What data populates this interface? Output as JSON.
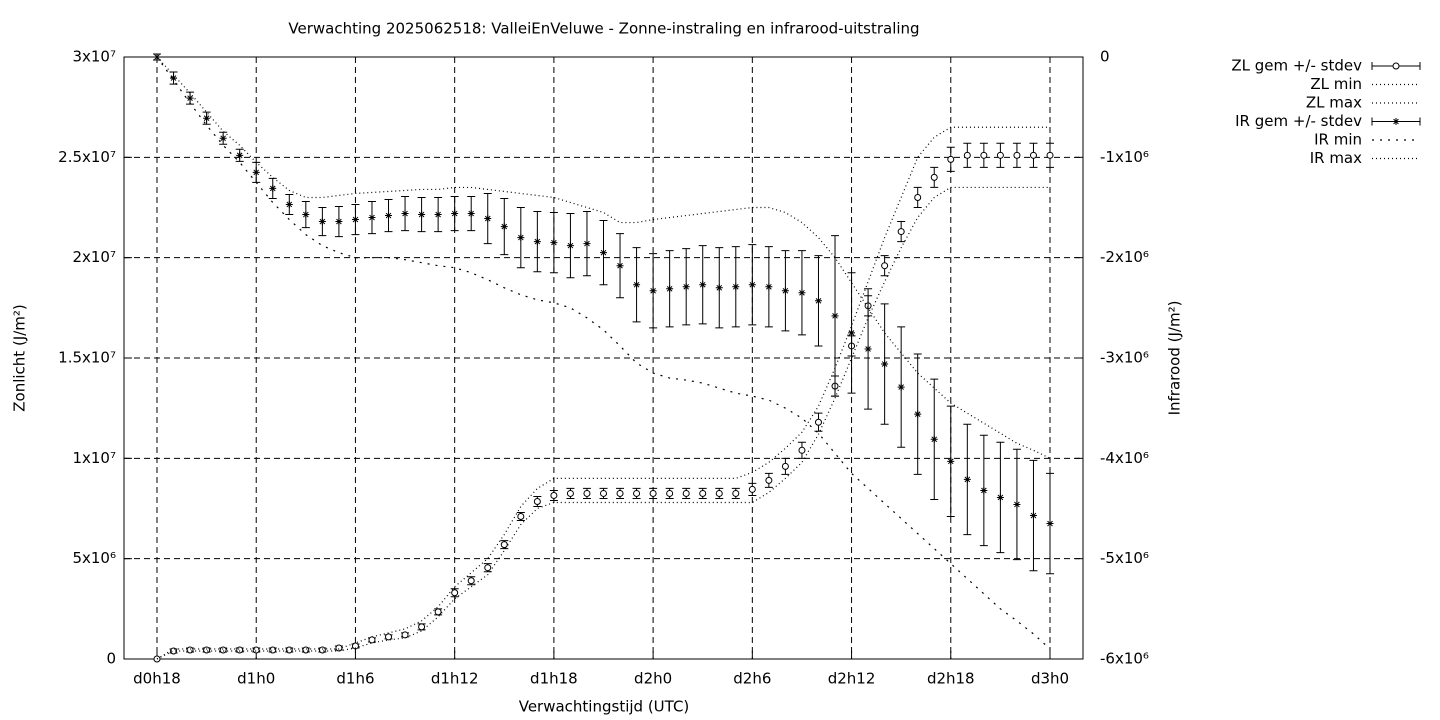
{
  "chart_data": {
    "type": "errorbar",
    "title": "Verwachting 2025062518: ValleiEnVeluwe - Zonne-instraling en infrarood-uitstraling",
    "xlabel": "Verwachtingstijd (UTC)",
    "ylabel": "Zonlicht (J/m²)",
    "y2label": "Infrarood (J/m²)",
    "categories": [
      "d0h18",
      null,
      null,
      null,
      null,
      null,
      "d1h0",
      null,
      null,
      null,
      null,
      null,
      "d1h6",
      null,
      null,
      null,
      null,
      null,
      "d1h12",
      null,
      null,
      null,
      null,
      null,
      "d1h18",
      null,
      null,
      null,
      null,
      null,
      "d2h0",
      null,
      null,
      null,
      null,
      null,
      "d2h6",
      null,
      null,
      null,
      null,
      null,
      "d2h12",
      null,
      null,
      null,
      null,
      null,
      "d2h18",
      null,
      null,
      null,
      null,
      null,
      "d3h0"
    ],
    "ylim": [
      0,
      30000000
    ],
    "yticks": [
      0,
      {
        "value": 5000000,
        "label": "5x10⁶"
      },
      {
        "value": 10000000,
        "label": "1x10⁷"
      },
      {
        "value": 15000000,
        "label": "1.5x10⁷"
      },
      {
        "value": 20000000,
        "label": "2x10⁷"
      },
      {
        "value": 25000000,
        "label": "2.5x10⁷"
      },
      {
        "value": 30000000,
        "label": "3x10⁷"
      }
    ],
    "y2lim": [
      -6000000,
      0
    ],
    "y2ticks": [
      {
        "value": -6000000,
        "label": "-6x10⁶"
      },
      {
        "value": -5000000,
        "label": "-5x10⁶"
      },
      {
        "value": -4000000,
        "label": "-4x10⁶"
      },
      {
        "value": -3000000,
        "label": "-3x10⁶"
      },
      {
        "value": -2000000,
        "label": "-2x10⁶"
      },
      {
        "value": -1000000,
        "label": "-1x10⁶"
      },
      0
    ],
    "grid": true,
    "legend": "outside-top-right",
    "series": [
      {
        "name": "ZL gem +/- stdev",
        "color": "#000000",
        "marker": "circle",
        "values": [
          0,
          400000,
          450000,
          450000,
          450000,
          450000,
          450000,
          450000,
          450000,
          450000,
          450000,
          550000,
          650000,
          950000,
          1100000,
          1200000,
          1600000,
          2350000,
          3300000,
          3900000,
          4550000,
          5700000,
          7100000,
          7850000,
          8150000,
          8250000,
          8250000,
          8250000,
          8250000,
          8250000,
          8250000,
          8250000,
          8250000,
          8250000,
          8250000,
          8250000,
          8450000,
          8900000,
          9600000,
          10400000,
          11800000,
          13600000,
          15600000,
          17600000,
          19600000,
          21300000,
          23000000,
          24000000,
          24900000,
          25100000,
          25100000,
          25100000,
          25100000,
          25100000,
          25100000
        ],
        "errors": [
          0,
          100000,
          100000,
          100000,
          100000,
          100000,
          100000,
          100000,
          100000,
          100000,
          100000,
          100000,
          100000,
          100000,
          100000,
          100000,
          150000,
          150000,
          200000,
          200000,
          200000,
          200000,
          200000,
          250000,
          250000,
          250000,
          250000,
          250000,
          250000,
          250000,
          250000,
          250000,
          250000,
          250000,
          250000,
          250000,
          300000,
          350000,
          400000,
          400000,
          450000,
          500000,
          500000,
          500000,
          500000,
          500000,
          500000,
          500000,
          600000,
          600000,
          600000,
          600000,
          600000,
          600000,
          600000
        ]
      },
      {
        "name": "ZL min",
        "color": "#000000",
        "dash": "1 3",
        "values": [
          0,
          400000,
          400000,
          400000,
          400000,
          400000,
          400000,
          400000,
          400000,
          400000,
          400000,
          400000,
          550000,
          800000,
          950000,
          1050000,
          1400000,
          2100000,
          3000000,
          3600000,
          4200000,
          5400000,
          6700000,
          7500000,
          7800000,
          7800000,
          7800000,
          7800000,
          7800000,
          7800000,
          7800000,
          7800000,
          7800000,
          7800000,
          7800000,
          7800000,
          7800000,
          8300000,
          9000000,
          9800000,
          11200000,
          13000000,
          15000000,
          17000000,
          18800000,
          20500000,
          22000000,
          23000000,
          23500000,
          23500000,
          23500000,
          23500000,
          23500000,
          23500000,
          23500000
        ]
      },
      {
        "name": "ZL max",
        "color": "#000000",
        "dash": "1 3",
        "values": [
          0,
          500000,
          500000,
          500000,
          500000,
          500000,
          500000,
          500000,
          500000,
          500000,
          500000,
          500000,
          800000,
          1100000,
          1300000,
          1500000,
          1900000,
          2600000,
          3600000,
          4300000,
          5000000,
          6200000,
          7600000,
          8500000,
          9000000,
          9000000,
          9000000,
          9000000,
          9000000,
          9000000,
          9000000,
          9000000,
          9000000,
          9000000,
          9000000,
          9000000,
          9300000,
          9800000,
          10500000,
          11300000,
          12600000,
          14500000,
          16600000,
          18800000,
          21000000,
          23000000,
          25000000,
          26000000,
          26500000,
          26500000,
          26500000,
          26500000,
          26500000,
          26500000,
          26500000
        ]
      },
      {
        "name": "IR gem +/- stdev",
        "color": "#000000",
        "marker": "star",
        "axis": "y2",
        "values": [
          0,
          -210000,
          -410000,
          -610000,
          -810000,
          -980000,
          -1150000,
          -1310000,
          -1470000,
          -1570000,
          -1640000,
          -1640000,
          -1620000,
          -1600000,
          -1580000,
          -1560000,
          -1570000,
          -1570000,
          -1560000,
          -1560000,
          -1610000,
          -1690000,
          -1800000,
          -1840000,
          -1850000,
          -1880000,
          -1860000,
          -1950000,
          -2080000,
          -2270000,
          -2330000,
          -2310000,
          -2290000,
          -2270000,
          -2300000,
          -2290000,
          -2270000,
          -2290000,
          -2330000,
          -2350000,
          -2430000,
          -2580000,
          -2750000,
          -2910000,
          -3060000,
          -3290000,
          -3560000,
          -3810000,
          -4030000,
          -4210000,
          -4320000,
          -4390000,
          -4460000,
          -4570000,
          -4650000
        ],
        "errors": [
          30000,
          60000,
          60000,
          60000,
          60000,
          60000,
          100000,
          100000,
          100000,
          130000,
          140000,
          150000,
          150000,
          160000,
          160000,
          170000,
          170000,
          170000,
          170000,
          170000,
          250000,
          280000,
          300000,
          300000,
          300000,
          320000,
          320000,
          320000,
          320000,
          370000,
          370000,
          380000,
          380000,
          390000,
          400000,
          400000,
          400000,
          400000,
          400000,
          420000,
          450000,
          800000,
          600000,
          600000,
          600000,
          600000,
          600000,
          600000,
          550000,
          550000,
          550000,
          550000,
          550000,
          550000,
          500000
        ]
      },
      {
        "name": "IR min",
        "color": "#000000",
        "dash": "2 6",
        "axis": "y2",
        "values": [
          0,
          -230000,
          -460000,
          -680000,
          -880000,
          -1050000,
          -1250000,
          -1450000,
          -1620000,
          -1770000,
          -1880000,
          -1950000,
          -2000000,
          -2000000,
          -2000000,
          -2020000,
          -2050000,
          -2080000,
          -2100000,
          -2150000,
          -2220000,
          -2300000,
          -2370000,
          -2420000,
          -2450000,
          -2500000,
          -2600000,
          -2720000,
          -2880000,
          -3050000,
          -3150000,
          -3200000,
          -3220000,
          -3250000,
          -3300000,
          -3350000,
          -3380000,
          -3420000,
          -3500000,
          -3600000,
          -3750000,
          -3950000,
          -4150000,
          -4300000,
          -4450000,
          -4600000,
          -4750000,
          -4900000,
          -5050000,
          -5200000,
          -5350000,
          -5500000,
          -5620000,
          -5750000,
          -5900000
        ]
      },
      {
        "name": "IR max",
        "color": "#000000",
        "dash": "1 3",
        "axis": "y2",
        "values": [
          0,
          -180000,
          -360000,
          -550000,
          -740000,
          -880000,
          -1050000,
          -1200000,
          -1330000,
          -1400000,
          -1400000,
          -1380000,
          -1360000,
          -1350000,
          -1340000,
          -1330000,
          -1320000,
          -1320000,
          -1300000,
          -1300000,
          -1320000,
          -1340000,
          -1360000,
          -1380000,
          -1400000,
          -1450000,
          -1500000,
          -1550000,
          -1650000,
          -1650000,
          -1620000,
          -1600000,
          -1580000,
          -1560000,
          -1540000,
          -1520000,
          -1500000,
          -1500000,
          -1550000,
          -1650000,
          -1800000,
          -2000000,
          -2250000,
          -2500000,
          -2750000,
          -2950000,
          -3150000,
          -3300000,
          -3450000,
          -3550000,
          -3650000,
          -3750000,
          -3850000,
          -3920000,
          -4000000
        ]
      }
    ]
  }
}
